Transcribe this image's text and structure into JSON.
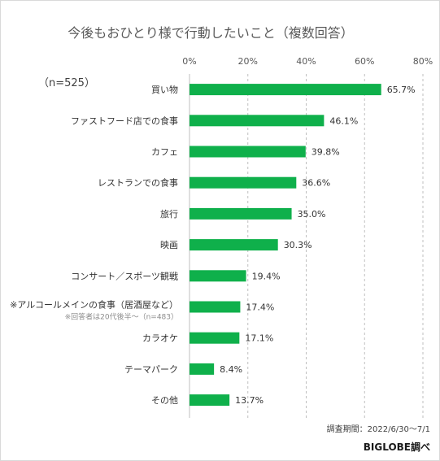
{
  "chart_data": {
    "type": "bar",
    "orientation": "horizontal",
    "title": "今後もおひとり様で行動したいこと（複数回答）",
    "sample_size": "（n=525）",
    "categories": [
      "買い物",
      "ファストフード店での食事",
      "カフェ",
      "レストランでの食事",
      "旅行",
      "映画",
      "コンサート／スポーツ観戦",
      "※アルコールメインの食事（居酒屋など）",
      "カラオケ",
      "テーマパーク",
      "その他"
    ],
    "category_notes": [
      "",
      "",
      "",
      "",
      "",
      "",
      "",
      "※回答者は20代後半～（n=483）",
      "",
      "",
      ""
    ],
    "values": [
      65.7,
      46.1,
      39.8,
      36.6,
      35.0,
      30.3,
      19.4,
      17.4,
      17.1,
      8.4,
      13.7
    ],
    "value_labels": [
      "65.7%",
      "46.1%",
      "39.8%",
      "36.6%",
      "35.0%",
      "30.3%",
      "19.4%",
      "17.4%",
      "17.1%",
      "8.4%",
      "13.7%"
    ],
    "xlim": [
      0,
      80
    ],
    "ticks": [
      0,
      20,
      40,
      60,
      80
    ],
    "tick_labels": [
      "0%",
      "20%",
      "40%",
      "60%",
      "80%"
    ],
    "gridlines": true,
    "bar_color": "#0fb04b",
    "grid_color": "#bfbfbf"
  },
  "footer": {
    "survey_period": "調査期間：2022/6/30～7/1",
    "source": "BIGLOBE調べ"
  }
}
